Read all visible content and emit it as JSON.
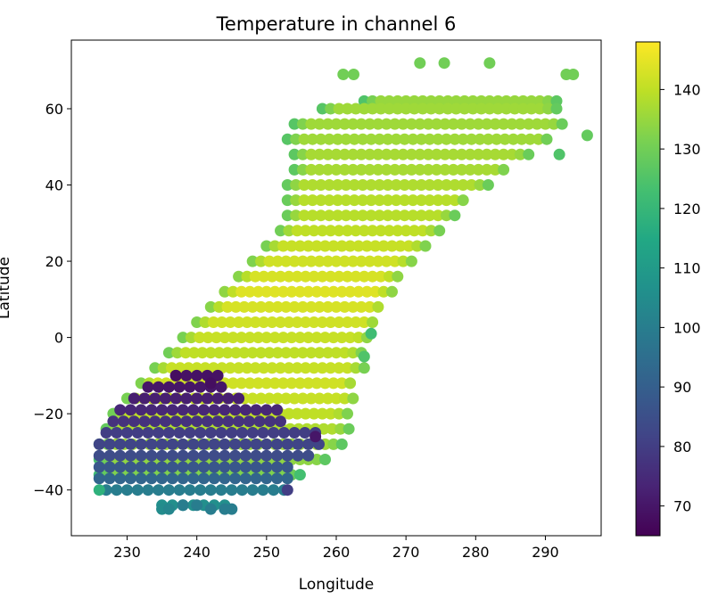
{
  "chart_data": {
    "type": "scatter",
    "title": "Temperature in channel 6",
    "xlabel": "Longitude",
    "ylabel": "Latitude",
    "xlim": [
      222,
      298
    ],
    "ylim": [
      -52,
      78
    ],
    "xticks": [
      230,
      240,
      250,
      260,
      270,
      280,
      290
    ],
    "yticks": [
      -40,
      -20,
      0,
      20,
      40,
      60
    ],
    "colorbar": {
      "colormap": "viridis",
      "range": [
        65,
        148
      ],
      "ticks": [
        70,
        80,
        90,
        100,
        110,
        120,
        130,
        140
      ]
    },
    "grid": false,
    "bands": [
      {
        "lat": 62,
        "lon": [
          264,
          292
        ],
        "value": 135
      },
      {
        "lat": 60,
        "lon": [
          258,
          292
        ],
        "value": 136
      },
      {
        "lat": 56,
        "lon": [
          254,
          293
        ],
        "value": 136
      },
      {
        "lat": 52,
        "lon": [
          253,
          291
        ],
        "value": 136
      },
      {
        "lat": 48,
        "lon": [
          254,
          288
        ],
        "value": 137
      },
      {
        "lat": 44,
        "lon": [
          254,
          285
        ],
        "value": 137
      },
      {
        "lat": 40,
        "lon": [
          253,
          282
        ],
        "value": 138
      },
      {
        "lat": 36,
        "lon": [
          253,
          279
        ],
        "value": 139
      },
      {
        "lat": 32,
        "lon": [
          253,
          277
        ],
        "value": 139
      },
      {
        "lat": 28,
        "lon": [
          252,
          275
        ],
        "value": 140
      },
      {
        "lat": 24,
        "lon": [
          250,
          273
        ],
        "value": 141
      },
      {
        "lat": 20,
        "lon": [
          248,
          271
        ],
        "value": 142
      },
      {
        "lat": 16,
        "lon": [
          246,
          269
        ],
        "value": 143
      },
      {
        "lat": 12,
        "lon": [
          244,
          268
        ],
        "value": 144
      },
      {
        "lat": 8,
        "lon": [
          242,
          267
        ],
        "value": 143
      },
      {
        "lat": 4,
        "lon": [
          240,
          266
        ],
        "value": 142
      },
      {
        "lat": 0,
        "lon": [
          238,
          265
        ],
        "value": 141
      },
      {
        "lat": -4,
        "lon": [
          236,
          264
        ],
        "value": 140
      },
      {
        "lat": -8,
        "lon": [
          234,
          264
        ],
        "value": 141
      },
      {
        "lat": -12,
        "lon": [
          232,
          263
        ],
        "value": 142
      },
      {
        "lat": -16,
        "lon": [
          230,
          263
        ],
        "value": 141
      },
      {
        "lat": -20,
        "lon": [
          228,
          262
        ],
        "value": 140
      },
      {
        "lat": -24,
        "lon": [
          227,
          262
        ],
        "value": 138
      },
      {
        "lat": -28,
        "lon": [
          226,
          261
        ],
        "value": 136
      },
      {
        "lat": -32,
        "lon": [
          226,
          259
        ],
        "value": 134
      },
      {
        "lat": -36,
        "lon": [
          226,
          255
        ],
        "value": 132
      }
    ],
    "clusters": [
      {
        "lat": -10,
        "lon": [
          237,
          243
        ],
        "value": 69
      },
      {
        "lat": -13,
        "lon": [
          233,
          244
        ],
        "value": 70
      },
      {
        "lat": -16,
        "lon": [
          231,
          246
        ],
        "value": 72
      },
      {
        "lat": -19,
        "lon": [
          229,
          252
        ],
        "value": 74
      },
      {
        "lat": -22,
        "lon": [
          228,
          253
        ],
        "value": 77
      },
      {
        "lat": -25,
        "lon": [
          227,
          257
        ],
        "value": 80
      },
      {
        "lat": -28,
        "lon": [
          226,
          258
        ],
        "value": 82
      },
      {
        "lat": -31,
        "lon": [
          226,
          257
        ],
        "value": 84
      },
      {
        "lat": -34,
        "lon": [
          226,
          254
        ],
        "value": 87
      },
      {
        "lat": -37,
        "lon": [
          226,
          253
        ],
        "value": 92
      },
      {
        "lat": -40,
        "lon": [
          227,
          253
        ],
        "value": 100
      },
      {
        "lat": -44,
        "lon": [
          235,
          245
        ],
        "value": 106
      }
    ],
    "edge_points": [
      {
        "lon": 261,
        "lat": 69,
        "value": 130
      },
      {
        "lon": 262.5,
        "lat": 69,
        "value": 130
      },
      {
        "lon": 272,
        "lat": 72,
        "value": 130
      },
      {
        "lon": 275.5,
        "lat": 72,
        "value": 130
      },
      {
        "lon": 282,
        "lat": 72,
        "value": 130
      },
      {
        "lon": 293,
        "lat": 69,
        "value": 130
      },
      {
        "lon": 294,
        "lat": 69,
        "value": 130
      },
      {
        "lon": 296,
        "lat": 53,
        "value": 128
      },
      {
        "lon": 292,
        "lat": 48,
        "value": 125
      },
      {
        "lon": 265,
        "lat": 1,
        "value": 122
      },
      {
        "lon": 264,
        "lat": -5,
        "value": 125
      },
      {
        "lon": 257,
        "lat": -26,
        "value": 70
      },
      {
        "lon": 237,
        "lat": -10,
        "value": 68
      },
      {
        "lon": 242,
        "lat": -12,
        "value": 68
      },
      {
        "lon": 253,
        "lat": -40,
        "value": 80
      },
      {
        "lon": 226,
        "lat": -40,
        "value": 118
      },
      {
        "lon": 235,
        "lat": -45,
        "value": 105
      },
      {
        "lon": 236,
        "lat": -45,
        "value": 103
      },
      {
        "lon": 238,
        "lat": -44,
        "value": 100
      },
      {
        "lon": 240,
        "lat": -44,
        "value": 100
      },
      {
        "lon": 242,
        "lat": -45,
        "value": 100
      },
      {
        "lon": 244,
        "lat": -45,
        "value": 100
      },
      {
        "lon": 245,
        "lat": -45,
        "value": 100
      }
    ]
  }
}
